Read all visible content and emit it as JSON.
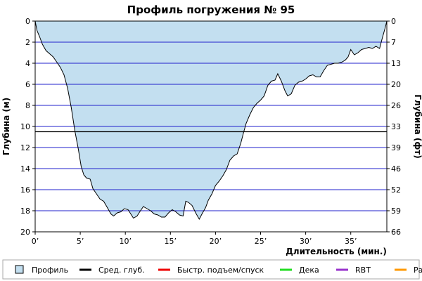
{
  "chart_data": {
    "type": "area",
    "title": "Профиль погружения № 95",
    "xlabel": "Длительность (мин.)",
    "ylabel_left": "Глубина (м)",
    "ylabel_right": "Глубина (фт)",
    "x_range": [
      0,
      39
    ],
    "y_range": [
      0,
      20
    ],
    "y_inverted": true,
    "x_ticks": [
      0,
      5,
      10,
      15,
      20,
      25,
      30,
      35
    ],
    "x_tick_labels": [
      "0’",
      "5’",
      "10’",
      "15’",
      "20’",
      "25’",
      "30’",
      "35’"
    ],
    "y_ticks": [
      0,
      2,
      4,
      6,
      8,
      10,
      12,
      14,
      16,
      18,
      20
    ],
    "y_tick_labels": [
      "0",
      "2",
      "4",
      "6",
      "8",
      "10",
      "12",
      "14",
      "16",
      "18",
      "20"
    ],
    "y2_ticks": [
      0,
      2,
      4,
      6,
      8,
      10,
      12,
      14,
      16,
      18,
      20
    ],
    "y2_tick_labels": [
      "0",
      "7",
      "13",
      "20",
      "26",
      "33",
      "39",
      "46",
      "52",
      "59",
      "66"
    ],
    "grid": "horizontal",
    "average_depth": 10.5,
    "colors": {
      "profile_fill": "#c3dff0",
      "profile_line": "#000000",
      "grid": "#2222cc",
      "average_line": "#000000"
    },
    "series": [
      {
        "name": "Профиль",
        "points": [
          [
            0.0,
            0.0
          ],
          [
            0.2,
            0.9
          ],
          [
            0.5,
            1.5
          ],
          [
            0.8,
            2.2
          ],
          [
            1.2,
            2.8
          ],
          [
            1.6,
            3.1
          ],
          [
            2.0,
            3.4
          ],
          [
            2.4,
            3.9
          ],
          [
            2.8,
            4.4
          ],
          [
            3.2,
            5.1
          ],
          [
            3.6,
            6.4
          ],
          [
            4.0,
            8.2
          ],
          [
            4.4,
            10.4
          ],
          [
            4.8,
            12.2
          ],
          [
            5.1,
            13.8
          ],
          [
            5.4,
            14.6
          ],
          [
            5.7,
            14.9
          ],
          [
            6.1,
            15.0
          ],
          [
            6.4,
            15.9
          ],
          [
            6.8,
            16.4
          ],
          [
            7.2,
            16.9
          ],
          [
            7.6,
            17.1
          ],
          [
            8.0,
            17.7
          ],
          [
            8.4,
            18.3
          ],
          [
            8.7,
            18.5
          ],
          [
            9.1,
            18.2
          ],
          [
            9.5,
            18.1
          ],
          [
            9.9,
            17.8
          ],
          [
            10.3,
            17.9
          ],
          [
            10.6,
            18.3
          ],
          [
            10.9,
            18.7
          ],
          [
            11.3,
            18.5
          ],
          [
            11.6,
            18.1
          ],
          [
            12.0,
            17.6
          ],
          [
            12.4,
            17.8
          ],
          [
            12.8,
            18.0
          ],
          [
            13.2,
            18.3
          ],
          [
            13.6,
            18.4
          ],
          [
            14.0,
            18.6
          ],
          [
            14.4,
            18.6
          ],
          [
            14.8,
            18.2
          ],
          [
            15.2,
            17.9
          ],
          [
            15.6,
            18.1
          ],
          [
            16.0,
            18.4
          ],
          [
            16.4,
            18.5
          ],
          [
            16.7,
            17.1
          ],
          [
            17.0,
            17.2
          ],
          [
            17.4,
            17.5
          ],
          [
            17.8,
            18.2
          ],
          [
            18.2,
            18.8
          ],
          [
            18.5,
            18.3
          ],
          [
            18.9,
            17.7
          ],
          [
            19.2,
            17.0
          ],
          [
            19.6,
            16.4
          ],
          [
            20.0,
            15.6
          ],
          [
            20.4,
            15.2
          ],
          [
            20.8,
            14.7
          ],
          [
            21.2,
            14.1
          ],
          [
            21.6,
            13.2
          ],
          [
            22.0,
            12.8
          ],
          [
            22.4,
            12.6
          ],
          [
            22.8,
            11.6
          ],
          [
            23.1,
            10.6
          ],
          [
            23.4,
            9.7
          ],
          [
            23.8,
            8.9
          ],
          [
            24.2,
            8.2
          ],
          [
            24.6,
            7.8
          ],
          [
            25.0,
            7.5
          ],
          [
            25.4,
            7.1
          ],
          [
            25.8,
            6.1
          ],
          [
            26.2,
            5.7
          ],
          [
            26.6,
            5.6
          ],
          [
            26.9,
            5.0
          ],
          [
            27.3,
            5.7
          ],
          [
            27.7,
            6.6
          ],
          [
            28.0,
            7.1
          ],
          [
            28.4,
            6.9
          ],
          [
            28.8,
            6.1
          ],
          [
            29.2,
            5.8
          ],
          [
            29.6,
            5.7
          ],
          [
            30.0,
            5.5
          ],
          [
            30.4,
            5.2
          ],
          [
            30.8,
            5.1
          ],
          [
            31.2,
            5.3
          ],
          [
            31.6,
            5.3
          ],
          [
            32.0,
            4.7
          ],
          [
            32.4,
            4.2
          ],
          [
            32.8,
            4.1
          ],
          [
            33.2,
            4.0
          ],
          [
            33.6,
            4.0
          ],
          [
            34.0,
            3.9
          ],
          [
            34.4,
            3.7
          ],
          [
            34.7,
            3.4
          ],
          [
            35.0,
            2.7
          ],
          [
            35.4,
            3.2
          ],
          [
            35.8,
            3.0
          ],
          [
            36.2,
            2.7
          ],
          [
            36.6,
            2.6
          ],
          [
            37.0,
            2.5
          ],
          [
            37.4,
            2.6
          ],
          [
            37.8,
            2.4
          ],
          [
            38.2,
            2.6
          ],
          [
            38.5,
            1.6
          ],
          [
            38.8,
            0.7
          ],
          [
            39.0,
            0.0
          ]
        ]
      },
      {
        "name": "Сред. глуб.",
        "value": 10.5
      }
    ],
    "legend": {
      "position": "bottom",
      "items": [
        {
          "name": "Профиль",
          "kind": "box",
          "color": "#c3dff0"
        },
        {
          "name": "Сред. глуб.",
          "kind": "line",
          "color": "#000000"
        },
        {
          "name": "Быстр. подъем/спуск",
          "kind": "line",
          "color": "#ee0000"
        },
        {
          "name": "Дека",
          "kind": "line",
          "color": "#22dd22"
        },
        {
          "name": "RBT",
          "kind": "line",
          "color": "#9933cc"
        },
        {
          "name": "Раб.",
          "kind": "line",
          "color": "#ff9900"
        }
      ]
    }
  }
}
